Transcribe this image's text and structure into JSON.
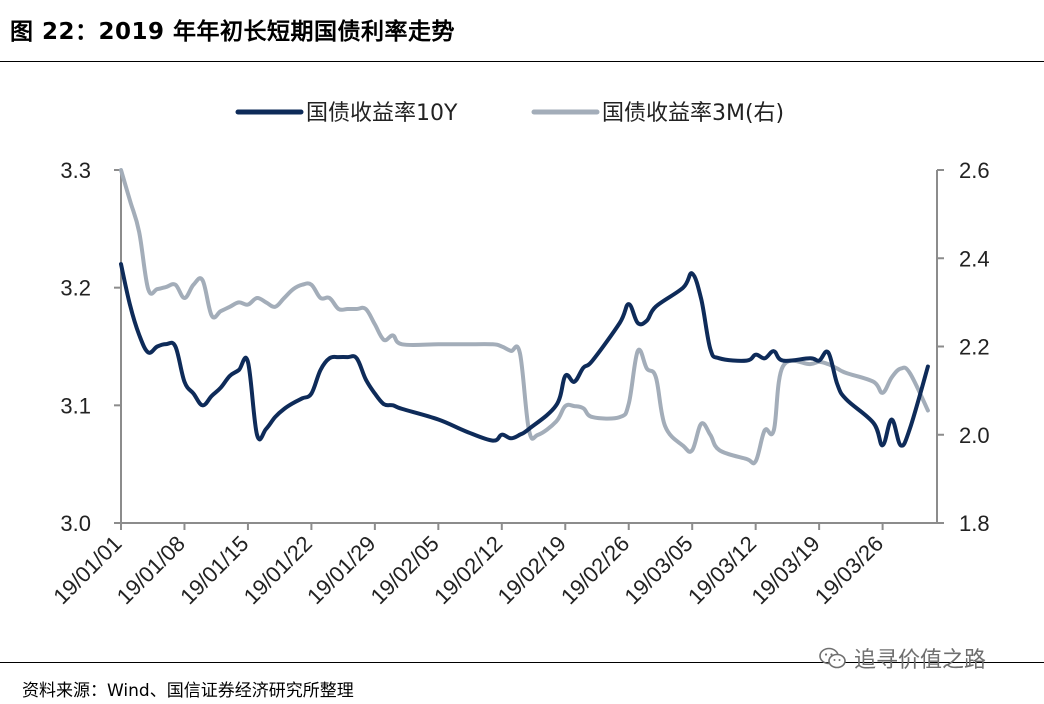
{
  "figure": {
    "title": "图  22：2019 年年初长短期国债利率走势",
    "source": "资料来源：Wind、国信证券经济研究所整理",
    "watermark": "追寻价值之路"
  },
  "chart_data": {
    "type": "line",
    "title": "",
    "xlabel": "",
    "ylabel_left": "",
    "ylabel_right": "",
    "x_ticks": [
      "19/01/01",
      "19/01/08",
      "19/01/15",
      "19/01/22",
      "19/01/29",
      "19/02/05",
      "19/02/12",
      "19/02/19",
      "19/02/26",
      "19/03/05",
      "19/03/12",
      "19/03/19",
      "19/03/26"
    ],
    "x_range": [
      "19/01/01",
      "19/04/01"
    ],
    "y_left": {
      "range": [
        3.0,
        3.3
      ],
      "ticks": [
        "3.0",
        "3.1",
        "3.2",
        "3.3"
      ]
    },
    "y_right": {
      "range": [
        1.8,
        2.6
      ],
      "ticks": [
        "1.8",
        "2.0",
        "2.2",
        "2.4",
        "2.6"
      ]
    },
    "legend_position": "top",
    "grid": false,
    "series": [
      {
        "name": "国债收益率10Y",
        "axis": "left",
        "color": "#0e2b59",
        "points": [
          [
            "19/01/01",
            3.22
          ],
          [
            "19/01/02",
            3.185
          ],
          [
            "19/01/03",
            3.16
          ],
          [
            "19/01/04",
            3.145
          ],
          [
            "19/01/05",
            3.15
          ],
          [
            "19/01/06",
            3.152
          ],
          [
            "19/01/07",
            3.15
          ],
          [
            "19/01/08",
            3.12
          ],
          [
            "19/01/09",
            3.11
          ],
          [
            "19/01/10",
            3.1
          ],
          [
            "19/01/11",
            3.108
          ],
          [
            "19/01/12",
            3.115
          ],
          [
            "19/01/13",
            3.125
          ],
          [
            "19/01/14",
            3.13
          ],
          [
            "19/01/15",
            3.137
          ],
          [
            "19/01/16",
            3.075
          ],
          [
            "19/01/17",
            3.08
          ],
          [
            "19/01/18",
            3.09
          ],
          [
            "19/01/19",
            3.097
          ],
          [
            "19/01/20",
            3.102
          ],
          [
            "19/01/21",
            3.106
          ],
          [
            "19/01/22",
            3.11
          ],
          [
            "19/01/23",
            3.13
          ],
          [
            "19/01/24",
            3.14
          ],
          [
            "19/01/25",
            3.141
          ],
          [
            "19/01/26",
            3.141
          ],
          [
            "19/01/27",
            3.14
          ],
          [
            "19/01/28",
            3.122
          ],
          [
            "19/01/29",
            3.11
          ],
          [
            "19/01/30",
            3.101
          ],
          [
            "19/01/31",
            3.1
          ],
          [
            "19/02/01",
            3.097
          ],
          [
            "19/02/05",
            3.088
          ],
          [
            "19/02/08",
            3.078
          ],
          [
            "19/02/11",
            3.07
          ],
          [
            "19/02/12",
            3.075
          ],
          [
            "19/02/13",
            3.072
          ],
          [
            "19/02/14",
            3.075
          ],
          [
            "19/02/15",
            3.08
          ],
          [
            "19/02/18",
            3.1
          ],
          [
            "19/02/19",
            3.125
          ],
          [
            "19/02/20",
            3.12
          ],
          [
            "19/02/21",
            3.132
          ],
          [
            "19/02/22",
            3.138
          ],
          [
            "19/02/25",
            3.17
          ],
          [
            "19/02/26",
            3.186
          ],
          [
            "19/02/27",
            3.17
          ],
          [
            "19/02/28",
            3.172
          ],
          [
            "19/03/01",
            3.184
          ],
          [
            "19/03/04",
            3.2
          ],
          [
            "19/03/05",
            3.212
          ],
          [
            "19/03/06",
            3.19
          ],
          [
            "19/03/07",
            3.148
          ],
          [
            "19/03/08",
            3.14
          ],
          [
            "19/03/11",
            3.138
          ],
          [
            "19/03/12",
            3.143
          ],
          [
            "19/03/13",
            3.14
          ],
          [
            "19/03/14",
            3.146
          ],
          [
            "19/03/15",
            3.138
          ],
          [
            "19/03/18",
            3.14
          ],
          [
            "19/03/19",
            3.138
          ],
          [
            "19/03/20",
            3.145
          ],
          [
            "19/03/21",
            3.118
          ],
          [
            "19/03/22",
            3.105
          ],
          [
            "19/03/25",
            3.085
          ],
          [
            "19/03/26",
            3.066
          ],
          [
            "19/03/27",
            3.088
          ],
          [
            "19/03/28",
            3.066
          ],
          [
            "19/03/29",
            3.08
          ],
          [
            "19/03/31",
            3.133
          ]
        ]
      },
      {
        "name": "国债收益率3M(右)",
        "axis": "right",
        "color": "#a3adb9",
        "points": [
          [
            "19/01/01",
            2.6
          ],
          [
            "19/01/02",
            2.53
          ],
          [
            "19/01/03",
            2.46
          ],
          [
            "19/01/04",
            2.33
          ],
          [
            "19/01/05",
            2.33
          ],
          [
            "19/01/06",
            2.335
          ],
          [
            "19/01/07",
            2.34
          ],
          [
            "19/01/08",
            2.31
          ],
          [
            "19/01/09",
            2.34
          ],
          [
            "19/01/10",
            2.35
          ],
          [
            "19/01/11",
            2.27
          ],
          [
            "19/01/12",
            2.28
          ],
          [
            "19/01/13",
            2.29
          ],
          [
            "19/01/14",
            2.3
          ],
          [
            "19/01/15",
            2.295
          ],
          [
            "19/01/16",
            2.31
          ],
          [
            "19/01/17",
            2.3
          ],
          [
            "19/01/18",
            2.29
          ],
          [
            "19/01/19",
            2.31
          ],
          [
            "19/01/20",
            2.33
          ],
          [
            "19/01/21",
            2.34
          ],
          [
            "19/01/22",
            2.34
          ],
          [
            "19/01/23",
            2.31
          ],
          [
            "19/01/24",
            2.31
          ],
          [
            "19/01/25",
            2.285
          ],
          [
            "19/01/26",
            2.285
          ],
          [
            "19/01/27",
            2.285
          ],
          [
            "19/01/28",
            2.285
          ],
          [
            "19/01/29",
            2.25
          ],
          [
            "19/01/30",
            2.215
          ],
          [
            "19/01/31",
            2.225
          ],
          [
            "19/02/01",
            2.205
          ],
          [
            "19/02/05",
            2.205
          ],
          [
            "19/02/08",
            2.205
          ],
          [
            "19/02/11",
            2.205
          ],
          [
            "19/02/12",
            2.2
          ],
          [
            "19/02/13",
            2.19
          ],
          [
            "19/02/14",
            2.185
          ],
          [
            "19/02/15",
            2.01
          ],
          [
            "19/02/16",
            2.0
          ],
          [
            "19/02/18",
            2.03
          ],
          [
            "19/02/19",
            2.065
          ],
          [
            "19/02/20",
            2.065
          ],
          [
            "19/02/21",
            2.06
          ],
          [
            "19/02/22",
            2.04
          ],
          [
            "19/02/25",
            2.04
          ],
          [
            "19/02/26",
            2.07
          ],
          [
            "19/02/27",
            2.19
          ],
          [
            "19/02/28",
            2.15
          ],
          [
            "19/03/01",
            2.13
          ],
          [
            "19/03/02",
            2.02
          ],
          [
            "19/03/04",
            1.975
          ],
          [
            "19/03/05",
            1.965
          ],
          [
            "19/03/06",
            2.025
          ],
          [
            "19/03/07",
            2.0
          ],
          [
            "19/03/08",
            1.965
          ],
          [
            "19/03/11",
            1.945
          ],
          [
            "19/03/12",
            1.94
          ],
          [
            "19/03/13",
            2.01
          ],
          [
            "19/03/14",
            2.01
          ],
          [
            "19/03/15",
            2.155
          ],
          [
            "19/03/18",
            2.16
          ],
          [
            "19/03/19",
            2.165
          ],
          [
            "19/03/20",
            2.16
          ],
          [
            "19/03/21",
            2.15
          ],
          [
            "19/03/22",
            2.14
          ],
          [
            "19/03/25",
            2.12
          ],
          [
            "19/03/26",
            2.095
          ],
          [
            "19/03/27",
            2.13
          ],
          [
            "19/03/28",
            2.15
          ],
          [
            "19/03/29",
            2.14
          ],
          [
            "19/03/31",
            2.055
          ]
        ]
      }
    ]
  }
}
